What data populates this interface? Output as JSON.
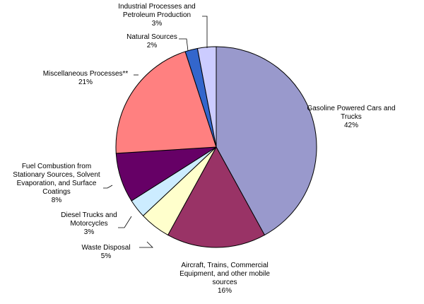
{
  "chart_data": {
    "type": "pie",
    "start_angle_deg": 0,
    "direction": "clockwise",
    "slices": [
      {
        "label_lines": [
          "Gasoline Powered Cars and",
          "Trucks"
        ],
        "value": 42,
        "value_label": "42%",
        "color": "#9999CC"
      },
      {
        "label_lines": [
          "Aircraft, Trains, Commercial",
          "Equipment, and other mobile",
          "sources"
        ],
        "value": 16,
        "value_label": "16%",
        "color": "#993366"
      },
      {
        "label_lines": [
          "Waste Disposal"
        ],
        "value": 5,
        "value_label": "5%",
        "color": "#FFFFCC"
      },
      {
        "label_lines": [
          "Diesel Trucks and",
          "Motorcycles"
        ],
        "value": 3,
        "value_label": "3%",
        "color": "#CCECFF"
      },
      {
        "label_lines": [
          "Fuel Combustion from",
          "Stationary Sources, Solvent",
          "Evaporation, and Surface",
          "Coatings"
        ],
        "value": 8,
        "value_label": "8%",
        "color": "#660066"
      },
      {
        "label_lines": [
          "Miscellaneous Processes**"
        ],
        "value": 21,
        "value_label": "21%",
        "color": "#FF8080"
      },
      {
        "label_lines": [
          "Natural Sources"
        ],
        "value": 2,
        "value_label": "2%",
        "color": "#3366CC"
      },
      {
        "label_lines": [
          "Industrial Processes and",
          "Petroleum Production"
        ],
        "value": 3,
        "value_label": "3%",
        "color": "#CCCCFF"
      }
    ]
  }
}
